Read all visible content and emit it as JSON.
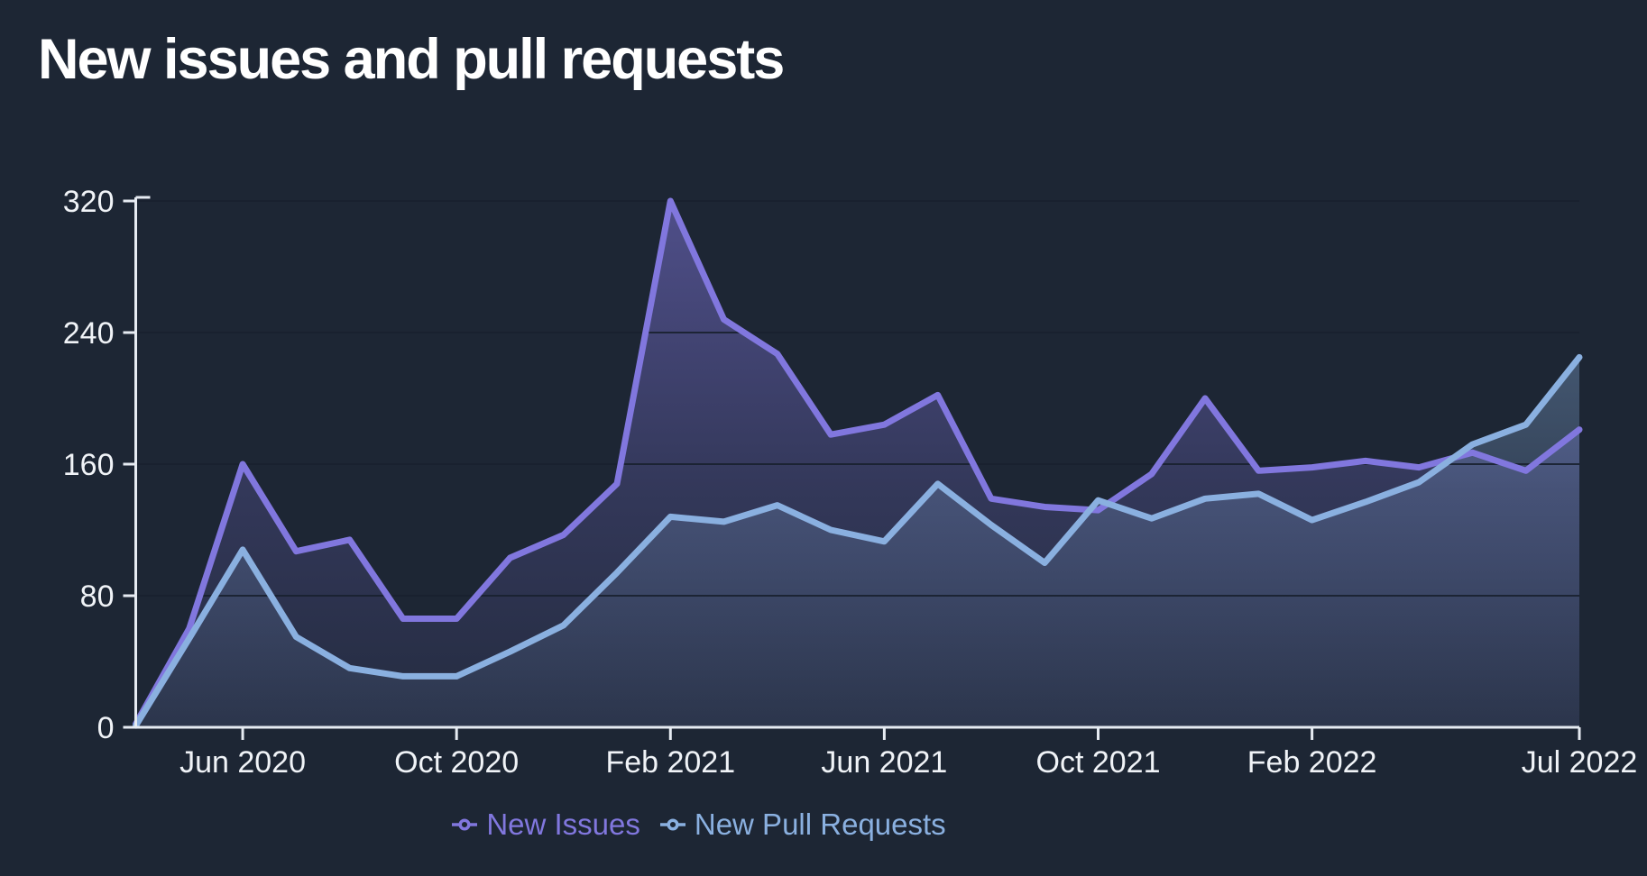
{
  "title": "New issues and pull requests",
  "colors": {
    "background": "#1d2634",
    "axis": "#e6ebf2",
    "grid": "#19212f",
    "tick_text": "#f0f3f7",
    "title_text": "#ffffff"
  },
  "legend": {
    "items": [
      {
        "label": "New Issues",
        "color": "#8177de"
      },
      {
        "label": "New Pull Requests",
        "color": "#8ab0e0"
      }
    ]
  },
  "y_axis": {
    "tick_labels": [
      "0",
      "80",
      "160",
      "240",
      "320"
    ]
  },
  "x_axis": {
    "tick_labels": [
      "Jun 2020",
      "Oct 2020",
      "Feb 2021",
      "Jun 2021",
      "Oct 2021",
      "Feb 2022",
      "Jul 2022"
    ]
  },
  "chart_data": {
    "type": "area",
    "title": "New issues and pull requests",
    "x": [
      "Apr 2020",
      "May 2020",
      "Jun 2020",
      "Jul 2020",
      "Aug 2020",
      "Sep 2020",
      "Oct 2020",
      "Nov 2020",
      "Dec 2020",
      "Jan 2021",
      "Feb 2021",
      "Mar 2021",
      "Apr 2021",
      "May 2021",
      "Jun 2021",
      "Jul 2021",
      "Aug 2021",
      "Sep 2021",
      "Oct 2021",
      "Nov 2021",
      "Dec 2021",
      "Jan 2022",
      "Feb 2022",
      "Mar 2022",
      "Apr 2022",
      "May 2022",
      "Jun 2022",
      "Jul 2022"
    ],
    "series": [
      {
        "name": "New Issues",
        "color": "#8177de",
        "values": [
          2,
          60,
          160,
          107,
          114,
          66,
          66,
          103,
          117,
          148,
          320,
          248,
          227,
          178,
          184,
          202,
          139,
          134,
          132,
          154,
          200,
          156,
          158,
          162,
          158,
          167,
          156,
          181
        ]
      },
      {
        "name": "New Pull Requests",
        "color": "#8ab0e0",
        "values": [
          1,
          54,
          108,
          55,
          36,
          31,
          31,
          46,
          62,
          94,
          128,
          125,
          135,
          120,
          113,
          148,
          123,
          100,
          138,
          127,
          139,
          142,
          126,
          137,
          149,
          172,
          184,
          225
        ]
      }
    ],
    "xlabel": "",
    "ylabel": "",
    "ylim": [
      0,
      320
    ],
    "y_ticks": [
      0,
      80,
      160,
      240,
      320
    ],
    "x_tick_indices": [
      2,
      6,
      10,
      14,
      18,
      22,
      27
    ],
    "x_tick_labels": [
      "Jun 2020",
      "Oct 2020",
      "Feb 2021",
      "Jun 2021",
      "Oct 2021",
      "Feb 2022",
      "Jul 2022"
    ],
    "grid": "horizontal",
    "legend_position": "bottom"
  }
}
